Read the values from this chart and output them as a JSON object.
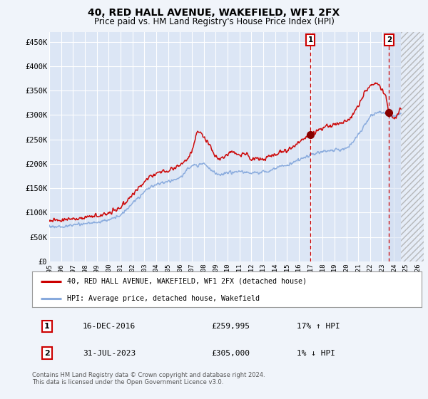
{
  "title": "40, RED HALL AVENUE, WAKEFIELD, WF1 2FX",
  "subtitle": "Price paid vs. HM Land Registry's House Price Index (HPI)",
  "title_fontsize": 10,
  "subtitle_fontsize": 8.5,
  "ylabel_ticks": [
    "£0",
    "£50K",
    "£100K",
    "£150K",
    "£200K",
    "£250K",
    "£300K",
    "£350K",
    "£400K",
    "£450K"
  ],
  "ytick_vals": [
    0,
    50000,
    100000,
    150000,
    200000,
    250000,
    300000,
    350000,
    400000,
    450000
  ],
  "ylim": [
    0,
    470000
  ],
  "xlim_start": 1995.0,
  "xlim_end": 2026.5,
  "background_color": "#f0f4fa",
  "plot_bg_color": "#dce6f5",
  "grid_color": "#ffffff",
  "red_line_color": "#cc0000",
  "blue_line_color": "#88aadd",
  "vline_color": "#cc0000",
  "marker1_x": 2016.96,
  "marker2_x": 2023.58,
  "marker1_label": "1",
  "marker2_label": "2",
  "marker1_price": 259995,
  "marker2_price": 305000,
  "legend_line1": "40, RED HALL AVENUE, WAKEFIELD, WF1 2FX (detached house)",
  "legend_line2": "HPI: Average price, detached house, Wakefield",
  "table_row1_num": "1",
  "table_row1_date": "16-DEC-2016",
  "table_row1_price": "£259,995",
  "table_row1_hpi": "17% ↑ HPI",
  "table_row2_num": "2",
  "table_row2_date": "31-JUL-2023",
  "table_row2_price": "£305,000",
  "table_row2_hpi": "1% ↓ HPI",
  "footnote": "Contains HM Land Registry data © Crown copyright and database right 2024.\nThis data is licensed under the Open Government Licence v3.0.",
  "hpi_future_hatch_start": 2024.58,
  "hpi_points": [
    [
      1995.0,
      72000
    ],
    [
      1996.0,
      71000
    ],
    [
      1997.0,
      74000
    ],
    [
      1998.0,
      77000
    ],
    [
      1999.0,
      80000
    ],
    [
      2000.0,
      85000
    ],
    [
      2001.0,
      95000
    ],
    [
      2002.0,
      118000
    ],
    [
      2003.0,
      142000
    ],
    [
      2004.0,
      158000
    ],
    [
      2005.0,
      163000
    ],
    [
      2006.0,
      172000
    ],
    [
      2007.0,
      195000
    ],
    [
      2008.0,
      200000
    ],
    [
      2008.5,
      190000
    ],
    [
      2009.0,
      180000
    ],
    [
      2009.5,
      178000
    ],
    [
      2010.0,
      182000
    ],
    [
      2011.0,
      183000
    ],
    [
      2012.0,
      181000
    ],
    [
      2013.0,
      183000
    ],
    [
      2014.0,
      190000
    ],
    [
      2015.0,
      198000
    ],
    [
      2016.0,
      207000
    ],
    [
      2017.0,
      218000
    ],
    [
      2018.0,
      225000
    ],
    [
      2019.0,
      228000
    ],
    [
      2020.0,
      232000
    ],
    [
      2021.0,
      260000
    ],
    [
      2022.0,
      295000
    ],
    [
      2022.5,
      305000
    ],
    [
      2023.0,
      305000
    ],
    [
      2023.5,
      300000
    ],
    [
      2024.0,
      298000
    ],
    [
      2024.5,
      302000
    ]
  ],
  "red_points": [
    [
      1995.0,
      85000
    ],
    [
      1996.0,
      85000
    ],
    [
      1997.0,
      87000
    ],
    [
      1998.0,
      90000
    ],
    [
      1999.0,
      93000
    ],
    [
      2000.0,
      99000
    ],
    [
      2001.0,
      110000
    ],
    [
      2002.0,
      136000
    ],
    [
      2003.0,
      163000
    ],
    [
      2004.0,
      181000
    ],
    [
      2005.0,
      187000
    ],
    [
      2006.0,
      198000
    ],
    [
      2007.0,
      225000
    ],
    [
      2007.5,
      265000
    ],
    [
      2008.0,
      253000
    ],
    [
      2008.5,
      238000
    ],
    [
      2009.0,
      213000
    ],
    [
      2009.5,
      208000
    ],
    [
      2010.0,
      220000
    ],
    [
      2010.5,
      225000
    ],
    [
      2011.0,
      217000
    ],
    [
      2011.5,
      222000
    ],
    [
      2012.0,
      210000
    ],
    [
      2012.5,
      212000
    ],
    [
      2013.0,
      210000
    ],
    [
      2013.5,
      215000
    ],
    [
      2014.0,
      220000
    ],
    [
      2014.5,
      225000
    ],
    [
      2015.0,
      228000
    ],
    [
      2015.5,
      235000
    ],
    [
      2016.0,
      245000
    ],
    [
      2016.96,
      259995
    ],
    [
      2017.0,
      262000
    ],
    [
      2017.5,
      268000
    ],
    [
      2018.0,
      272000
    ],
    [
      2018.5,
      278000
    ],
    [
      2019.0,
      280000
    ],
    [
      2019.5,
      283000
    ],
    [
      2020.0,
      287000
    ],
    [
      2020.5,
      300000
    ],
    [
      2021.0,
      320000
    ],
    [
      2021.5,
      345000
    ],
    [
      2022.0,
      360000
    ],
    [
      2022.5,
      365000
    ],
    [
      2022.8,
      360000
    ],
    [
      2023.0,
      350000
    ],
    [
      2023.3,
      340000
    ],
    [
      2023.58,
      305000
    ],
    [
      2023.8,
      298000
    ],
    [
      2024.0,
      295000
    ],
    [
      2024.5,
      310000
    ]
  ]
}
